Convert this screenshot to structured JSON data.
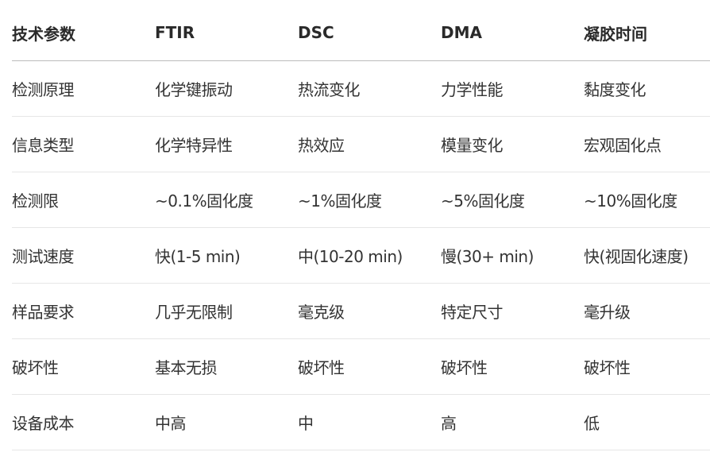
{
  "table": {
    "headers": [
      "技术参数",
      "FTIR",
      "DSC",
      "DMA",
      "凝胶时间"
    ],
    "rows": [
      [
        "检测原理",
        "化学键振动",
        "热流变化",
        "力学性能",
        "黏度变化"
      ],
      [
        "信息类型",
        "化学特异性",
        "热效应",
        "模量变化",
        "宏观固化点"
      ],
      [
        "检测限",
        "~0.1%固化度",
        "~1%固化度",
        "~5%固化度",
        "~10%固化度"
      ],
      [
        "测试速度",
        "快(1-5 min)",
        "中(10-20 min)",
        "慢(30+ min)",
        "快(视固化速度)"
      ],
      [
        "样品要求",
        "几乎无限制",
        "毫克级",
        "特定尺寸",
        "毫升级"
      ],
      [
        "破坏性",
        "基本无损",
        "破坏性",
        "破坏性",
        "破坏性"
      ],
      [
        "设备成本",
        "中高",
        "中",
        "高",
        "低"
      ]
    ]
  }
}
